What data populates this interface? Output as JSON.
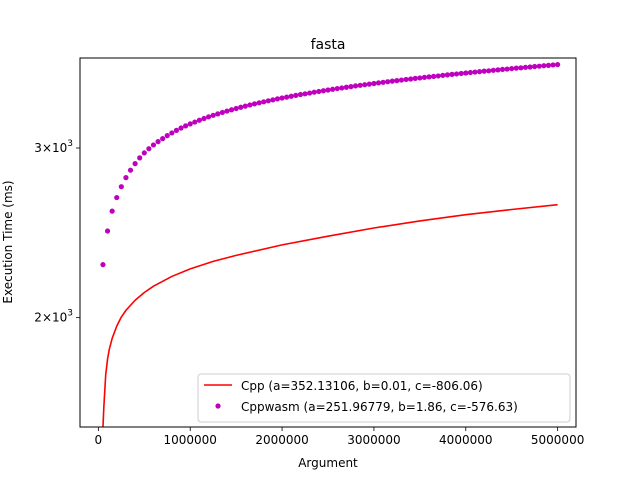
{
  "chart_data": {
    "type": "line",
    "title": "fasta",
    "xlabel": "Argument",
    "ylabel": "Execution Time (ms)",
    "xlim": [
      -200000,
      5200000
    ],
    "ylim": [
      1540,
      3720
    ],
    "yscale": "log",
    "x_ticks": [
      {
        "value": 0,
        "label": "0"
      },
      {
        "value": 1000000,
        "label": "1000000"
      },
      {
        "value": 2000000,
        "label": "2000000"
      },
      {
        "value": 3000000,
        "label": "3000000"
      },
      {
        "value": 4000000,
        "label": "4000000"
      },
      {
        "value": 5000000,
        "label": "5000000"
      }
    ],
    "y_ticks": [
      {
        "value": 2000,
        "base": "2",
        "power": "3"
      },
      {
        "value": 3000,
        "base": "3",
        "power": "3"
      }
    ],
    "grid": false,
    "legend_position": "lower-right",
    "series": [
      {
        "name": "Cpp (a=352.13106, b=0.01, c=-806.06)",
        "style": "line",
        "color": "#ff0000",
        "x": [
          50000,
          60000,
          80000,
          100000,
          120000,
          150000,
          200000,
          250000,
          300000,
          400000,
          500000,
          600000,
          800000,
          1000000,
          1250000,
          1500000,
          2000000,
          2500000,
          3000000,
          3500000,
          4000000,
          4500000,
          5000000
        ],
        "values": [
          1540,
          1618,
          1745,
          1812,
          1856,
          1903,
          1960,
          2003,
          2035,
          2085,
          2124,
          2156,
          2207,
          2247,
          2288,
          2321,
          2380,
          2430,
          2478,
          2520,
          2558,
          2590,
          2620
        ]
      },
      {
        "name": "Cppwasm (a=251.96779, b=1.86, c=-576.63)",
        "style": "markers",
        "color": "#bf00bf",
        "x": [
          50000,
          100000,
          150000,
          200000,
          250000,
          300000,
          350000,
          400000,
          450000,
          500000,
          550000,
          600000,
          650000,
          700000,
          750000,
          800000,
          850000,
          900000,
          950000,
          1000000,
          1050000,
          1100000,
          1150000,
          1200000,
          1250000,
          1300000,
          1350000,
          1400000,
          1450000,
          1500000,
          1550000,
          1600000,
          1650000,
          1700000,
          1750000,
          1800000,
          1850000,
          1900000,
          1950000,
          2000000,
          2050000,
          2100000,
          2150000,
          2200000,
          2250000,
          2300000,
          2350000,
          2400000,
          2450000,
          2500000,
          2550000,
          2600000,
          2650000,
          2700000,
          2750000,
          2800000,
          2850000,
          2900000,
          2950000,
          3000000,
          3050000,
          3100000,
          3150000,
          3200000,
          3250000,
          3300000,
          3350000,
          3400000,
          3450000,
          3500000,
          3550000,
          3600000,
          3650000,
          3700000,
          3750000,
          3800000,
          3850000,
          3900000,
          3950000,
          4000000,
          4050000,
          4100000,
          4150000,
          4200000,
          4250000,
          4300000,
          4350000,
          4400000,
          4450000,
          4500000,
          4550000,
          4600000,
          4650000,
          4700000,
          4750000,
          4800000,
          4850000,
          4900000,
          4950000,
          5000000
        ],
        "values": [
          2270,
          2460,
          2580,
          2665,
          2735,
          2795,
          2845,
          2890,
          2930,
          2965,
          2995,
          3022,
          3046,
          3068,
          3090,
          3110,
          3129,
          3147,
          3163,
          3178,
          3192,
          3206,
          3219,
          3232,
          3244,
          3255,
          3266,
          3277,
          3287,
          3297,
          3307,
          3316,
          3325,
          3334,
          3342,
          3350,
          3358,
          3366,
          3374,
          3381,
          3388,
          3395,
          3402,
          3409,
          3415,
          3421,
          3428,
          3434,
          3440,
          3446,
          3452,
          3458,
          3463,
          3469,
          3474,
          3480,
          3485,
          3490,
          3495,
          3500,
          3505,
          3510,
          3515,
          3520,
          3524,
          3529,
          3534,
          3538,
          3543,
          3547,
          3552,
          3556,
          3560,
          3564,
          3569,
          3573,
          3577,
          3581,
          3585,
          3589,
          3593,
          3597,
          3601,
          3605,
          3608,
          3612,
          3616,
          3620,
          3623,
          3627,
          3631,
          3634,
          3638,
          3641,
          3645,
          3648,
          3652,
          3655,
          3659,
          3662
        ]
      }
    ]
  }
}
